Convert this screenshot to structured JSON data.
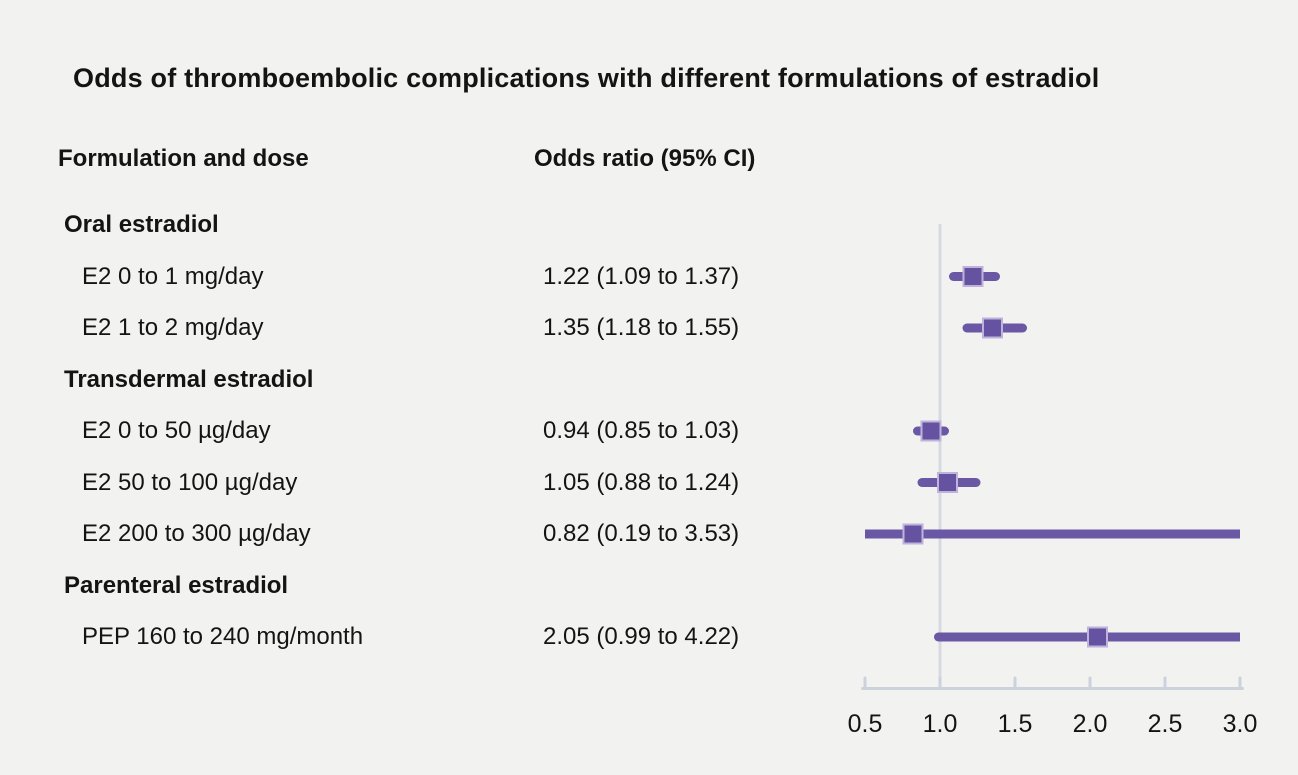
{
  "chart_data": {
    "type": "scatter",
    "subtype": "forest-plot",
    "title": "Odds of thromboembolic complications with different formulations of estradiol",
    "columns": [
      "Formulation and dose",
      "Odds ratio (95% CI)"
    ],
    "rows": [
      {
        "type": "group",
        "label": "Oral estradiol"
      },
      {
        "type": "item",
        "label": "E2 0 to 1 mg/day",
        "or_text": "1.22 (1.09 to 1.37)",
        "estimate": 1.22,
        "ci_low": 1.09,
        "ci_high": 1.37
      },
      {
        "type": "item",
        "label": "E2 1 to 2 mg/day",
        "or_text": "1.35 (1.18 to 1.55)",
        "estimate": 1.35,
        "ci_low": 1.18,
        "ci_high": 1.55
      },
      {
        "type": "group",
        "label": "Transdermal estradiol"
      },
      {
        "type": "item",
        "label": "E2 0 to 50 µg/day",
        "or_text": "0.94 (0.85 to 1.03)",
        "estimate": 0.94,
        "ci_low": 0.85,
        "ci_high": 1.03
      },
      {
        "type": "item",
        "label": "E2 50 to 100 µg/day",
        "or_text": "1.05 (0.88 to 1.24)",
        "estimate": 1.05,
        "ci_low": 0.88,
        "ci_high": 1.24
      },
      {
        "type": "item",
        "label": "E2 200 to 300 µg/day",
        "or_text": "0.82 (0.19 to 3.53)",
        "estimate": 0.82,
        "ci_low": 0.19,
        "ci_high": 3.53
      },
      {
        "type": "group",
        "label": "Parenteral estradiol"
      },
      {
        "type": "item",
        "label": "PEP 160 to 240 mg/month",
        "or_text": "2.05 (0.99 to 4.22)",
        "estimate": 2.05,
        "ci_low": 0.99,
        "ci_high": 4.22
      }
    ],
    "xaxis": {
      "min": 0.5,
      "max": 3.0,
      "ticks": [
        0.5,
        1.0,
        1.5,
        2.0,
        2.5,
        3.0
      ],
      "tick_labels": [
        "0.5",
        "1.0",
        "1.5",
        "2.0",
        "2.5",
        "3.0"
      ],
      "reference_line": 1.0,
      "scale": "linear",
      "grid": false
    },
    "colors": {
      "ci_line": "#6a58a4",
      "marker_fill": "#6553a2",
      "marker_border": "#bfb3dc",
      "axis": "#ccd1db",
      "reference_line": "#d6d9e1",
      "background": "#f2f2f0",
      "text": "#141414"
    }
  }
}
